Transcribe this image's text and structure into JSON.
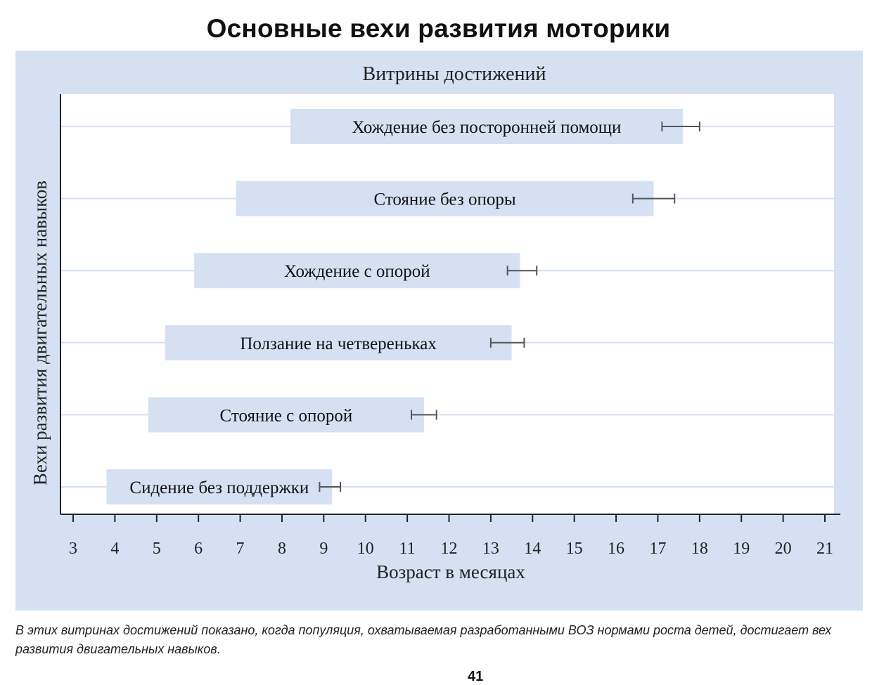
{
  "page": {
    "title": "Основные вехи развития моторики",
    "caption": "В этих витринах достижений показано, когда популяция, охватываемая разработанными ВОЗ нормами роста детей, достигает вех развития двигательных навыков.",
    "page_number": "41"
  },
  "colors": {
    "panel_bg": "#d5e1f3",
    "bar_fill": "#d5e1f3",
    "plot_bg": "#ffffff",
    "gridline": "#d5e1f3",
    "axis": "#222222",
    "errorbar": "#555555"
  },
  "chart_data": {
    "type": "bar",
    "orientation": "horizontal",
    "title": "Витрины достижений",
    "xlabel": "Возраст в месяцах",
    "ylabel": "Вехи развития двигательных навыков",
    "xlim": [
      2.7,
      21.3
    ],
    "xticks": [
      3,
      4,
      5,
      6,
      7,
      8,
      9,
      10,
      11,
      12,
      13,
      14,
      15,
      16,
      17,
      18,
      19,
      20,
      21
    ],
    "grid": "horizontal",
    "legend": "none",
    "categories": [
      "Хождение без посторонней помощи",
      "Стояние без опоры",
      "Хождение с опорой",
      "Ползание на четвереньках",
      "Стояние с опорой",
      "Сидение без поддержки"
    ],
    "series": [
      {
        "start": [
          8.2,
          6.9,
          5.9,
          5.2,
          4.8,
          3.8
        ],
        "end": [
          17.6,
          16.9,
          13.7,
          13.5,
          11.4,
          9.2
        ],
        "error_low": [
          17.1,
          16.4,
          13.4,
          13.0,
          11.1,
          8.9
        ],
        "error_high": [
          18.0,
          17.4,
          14.1,
          13.8,
          11.7,
          9.4
        ]
      }
    ]
  }
}
